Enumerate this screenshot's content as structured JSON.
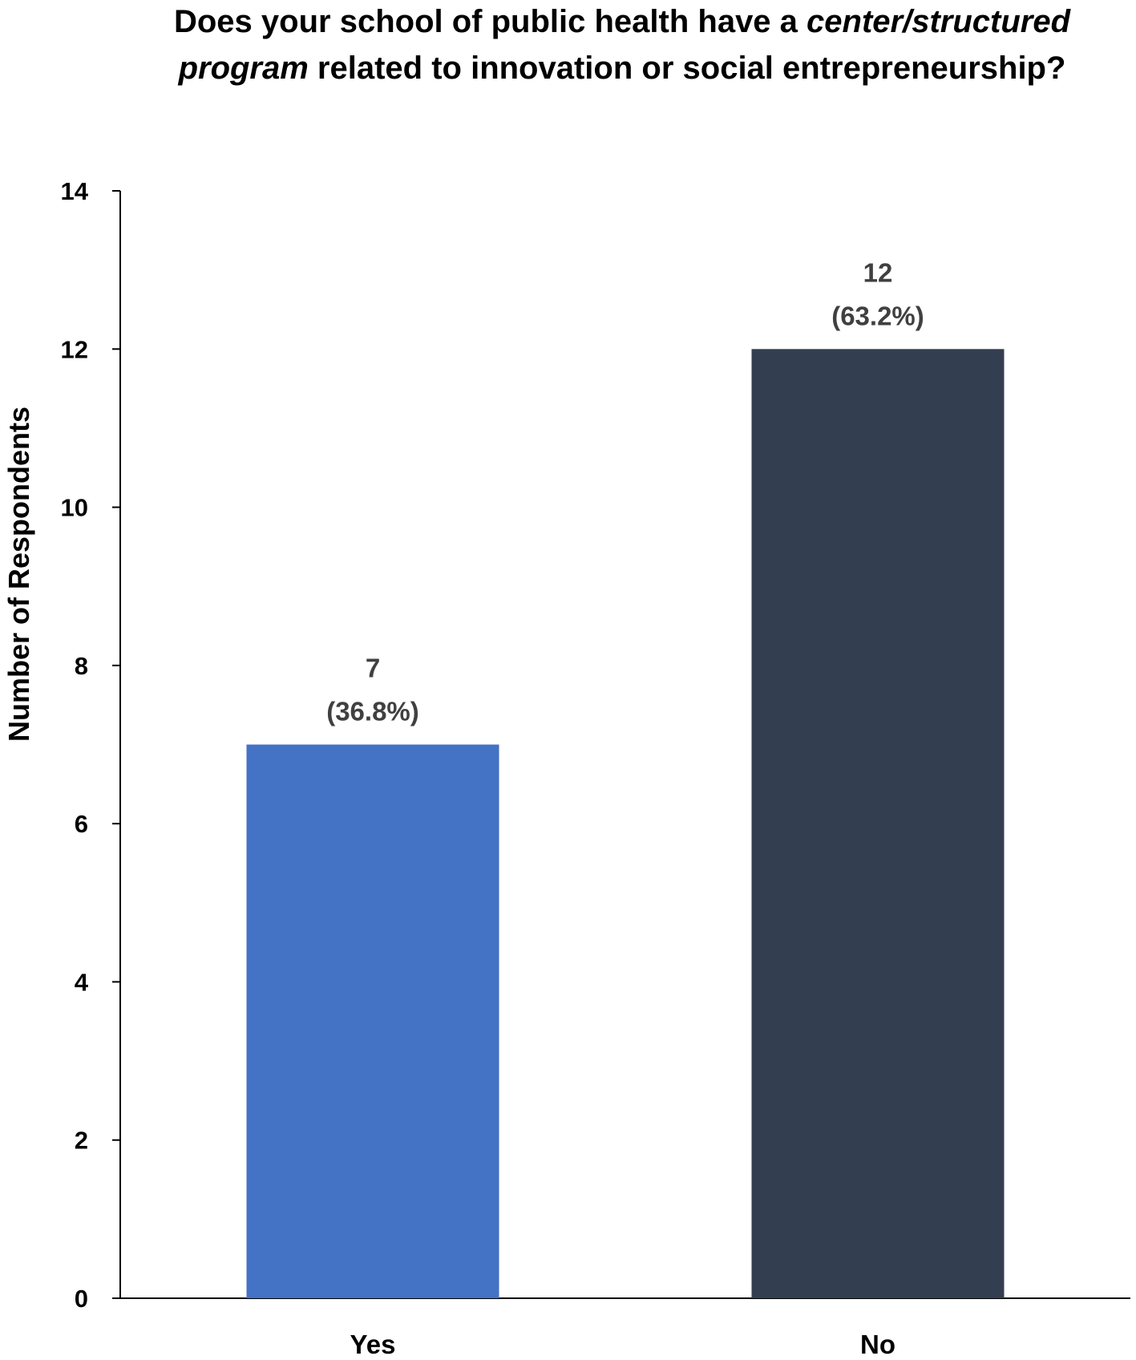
{
  "chart_data": {
    "type": "bar",
    "title_parts": {
      "line1_regular": "Does your school of public health have a ",
      "line1_italic": "center/structured",
      "line2_italic": "program",
      "line2_regular": " related to innovation or social entrepreneurship?"
    },
    "xlabel": "",
    "ylabel": "Number of Respondents",
    "categories": [
      "Yes",
      "No"
    ],
    "values": [
      7,
      12
    ],
    "value_labels": [
      "7",
      "12"
    ],
    "percent_labels": [
      "(36.8%)",
      "(63.2%)"
    ],
    "bar_colors": [
      "#4472C4",
      "#333F50"
    ],
    "ylim": [
      0,
      14
    ],
    "yticks": [
      0,
      2,
      4,
      6,
      8,
      10,
      12,
      14
    ],
    "grid": false,
    "legend": "none"
  }
}
